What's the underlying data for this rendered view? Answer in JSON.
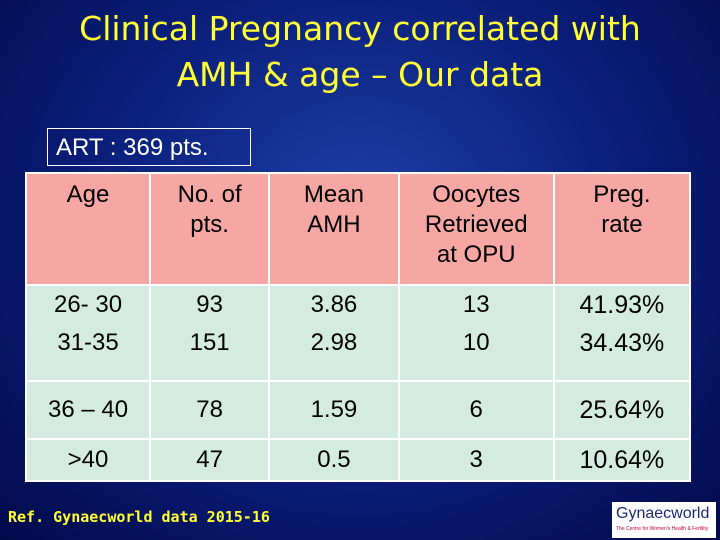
{
  "header": {
    "title_lines": [
      "Clinical Pregnancy correlated with",
      "AMH & age – Our data"
    ]
  },
  "summary": "ART : 369 pts.",
  "table": {
    "columns": [
      [
        "Age"
      ],
      [
        "No. of",
        "pts."
      ],
      [
        "Mean",
        "AMH"
      ],
      [
        "Oocytes",
        "Retrieved",
        "at OPU"
      ],
      [
        "Preg.",
        "rate"
      ]
    ],
    "rows": [
      [
        "26- 30",
        "93",
        "3.86",
        "13",
        "41.93%"
      ],
      [
        "31-35",
        "151",
        "2.98",
        "10",
        "34.43%"
      ],
      [
        "36 – 40",
        "78",
        "1.59",
        "6",
        "25.64%"
      ],
      [
        ">40",
        "47",
        "0.5",
        "3",
        "10.64%"
      ]
    ]
  },
  "footer": {
    "reference": "Ref. Gynaecworld data 2015-16",
    "logo": {
      "name": "Gynaecworld",
      "tagline": "The Centre for Women's Health & Fertility"
    }
  }
}
